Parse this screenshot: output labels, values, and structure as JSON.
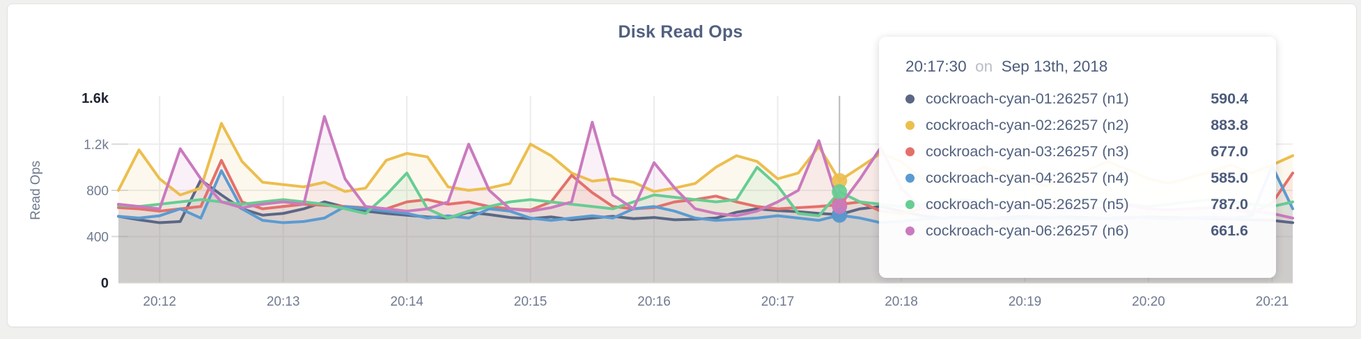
{
  "chart_data": {
    "type": "area",
    "title": "Disk Read Ops",
    "ylabel": "Read Ops",
    "xlabel": "",
    "ylim": [
      0,
      1600
    ],
    "grid": true,
    "y_ticks": [
      {
        "label": "1.6k",
        "value": 1600,
        "maxmin": true
      },
      {
        "label": "1.2k",
        "value": 1200,
        "maxmin": false
      },
      {
        "label": "800",
        "value": 800,
        "maxmin": false
      },
      {
        "label": "400",
        "value": 400,
        "maxmin": false
      },
      {
        "label": "0",
        "value": 0,
        "maxmin": true
      }
    ],
    "x_tick_labels": [
      "20:12",
      "20:13",
      "20:14",
      "20:15",
      "20:16",
      "20:17",
      "20:18",
      "20:19",
      "20:20",
      "20:21"
    ],
    "x_start_time": "20:11:40",
    "x_interval_seconds": 10,
    "hover": {
      "index": 35,
      "time": "20:17:30"
    },
    "series": [
      {
        "name": "cockroach-cyan-01:26257 (n1)",
        "color": "#5b6784",
        "values": [
          575,
          545,
          520,
          530,
          890,
          760,
          640,
          585,
          600,
          640,
          700,
          655,
          620,
          600,
          585,
          570,
          560,
          610,
          590,
          565,
          555,
          570,
          545,
          560,
          575,
          555,
          565,
          545,
          550,
          560,
          610,
          640,
          625,
          615,
          600,
          590.4,
          640,
          660,
          620,
          580,
          560,
          570,
          555,
          565,
          575,
          560,
          570,
          565,
          555,
          560,
          570,
          565,
          560,
          555,
          550,
          545,
          540,
          520
        ]
      },
      {
        "name": "cockroach-cyan-02:26257 (n2)",
        "color": "#ecbe4e",
        "values": [
          800,
          1150,
          900,
          760,
          820,
          1380,
          1050,
          870,
          850,
          830,
          870,
          790,
          820,
          1060,
          1120,
          1090,
          830,
          800,
          820,
          860,
          1200,
          1100,
          950,
          880,
          900,
          870,
          790,
          820,
          860,
          1000,
          1100,
          1050,
          900,
          950,
          1180,
          883.8,
          1000,
          1120,
          1050,
          900,
          860,
          920,
          1000,
          950,
          880,
          840,
          900,
          970,
          1050,
          980,
          900,
          860,
          910,
          960,
          1020,
          950,
          1020,
          1100
        ]
      },
      {
        "name": "cockroach-cyan-03:26257 (n3)",
        "color": "#e4706b",
        "values": [
          650,
          640,
          620,
          640,
          660,
          1060,
          700,
          640,
          660,
          680,
          670,
          660,
          650,
          640,
          700,
          720,
          680,
          700,
          660,
          640,
          630,
          700,
          930,
          780,
          660,
          640,
          650,
          700,
          720,
          750,
          700,
          660,
          640,
          650,
          660,
          677.0,
          700,
          620,
          600,
          640,
          660,
          680,
          650,
          640,
          660,
          680,
          660,
          640,
          650,
          670,
          640,
          630,
          640,
          650,
          640,
          600,
          690,
          950
        ]
      },
      {
        "name": "cockroach-cyan-04:26257 (n4)",
        "color": "#5b9bd1",
        "values": [
          575,
          560,
          580,
          640,
          560,
          970,
          640,
          540,
          520,
          530,
          560,
          660,
          640,
          620,
          600,
          560,
          580,
          560,
          640,
          620,
          560,
          540,
          560,
          580,
          560,
          640,
          660,
          620,
          560,
          540,
          550,
          560,
          580,
          560,
          540,
          585.0,
          560,
          520,
          530,
          550,
          560,
          570,
          560,
          550,
          560,
          570,
          560,
          550,
          560,
          570,
          560,
          550,
          560,
          570,
          560,
          580,
          1010,
          640
        ]
      },
      {
        "name": "cockroach-cyan-05:26257 (n5)",
        "color": "#66cd93",
        "values": [
          670,
          660,
          680,
          700,
          720,
          700,
          680,
          700,
          720,
          700,
          680,
          640,
          600,
          760,
          950,
          640,
          560,
          620,
          660,
          700,
          720,
          700,
          680,
          660,
          640,
          700,
          760,
          740,
          720,
          700,
          720,
          1000,
          840,
          600,
          580,
          787.0,
          700,
          680,
          660,
          680,
          700,
          720,
          700,
          680,
          660,
          680,
          700,
          720,
          700,
          680,
          660,
          680,
          700,
          720,
          700,
          680,
          660,
          700
        ]
      },
      {
        "name": "cockroach-cyan-06:26257 (n6)",
        "color": "#ca7abe",
        "values": [
          680,
          660,
          640,
          1160,
          900,
          700,
          650,
          680,
          700,
          680,
          1440,
          900,
          660,
          640,
          620,
          640,
          700,
          1200,
          800,
          640,
          620,
          650,
          700,
          1390,
          760,
          640,
          1040,
          820,
          640,
          600,
          580,
          620,
          700,
          800,
          1230,
          661.6,
          900,
          1170,
          820,
          640,
          660,
          700,
          650,
          640,
          680,
          700,
          660,
          640,
          650,
          670,
          640,
          630,
          640,
          650,
          640,
          620,
          600,
          560
        ]
      }
    ]
  },
  "tooltip": {
    "time": "20:17:30",
    "preposition": "on",
    "date": "Sep 13th, 2018",
    "rows": [
      "590.4",
      "883.8",
      "677.0",
      "585.0",
      "787.0",
      "661.6"
    ]
  }
}
